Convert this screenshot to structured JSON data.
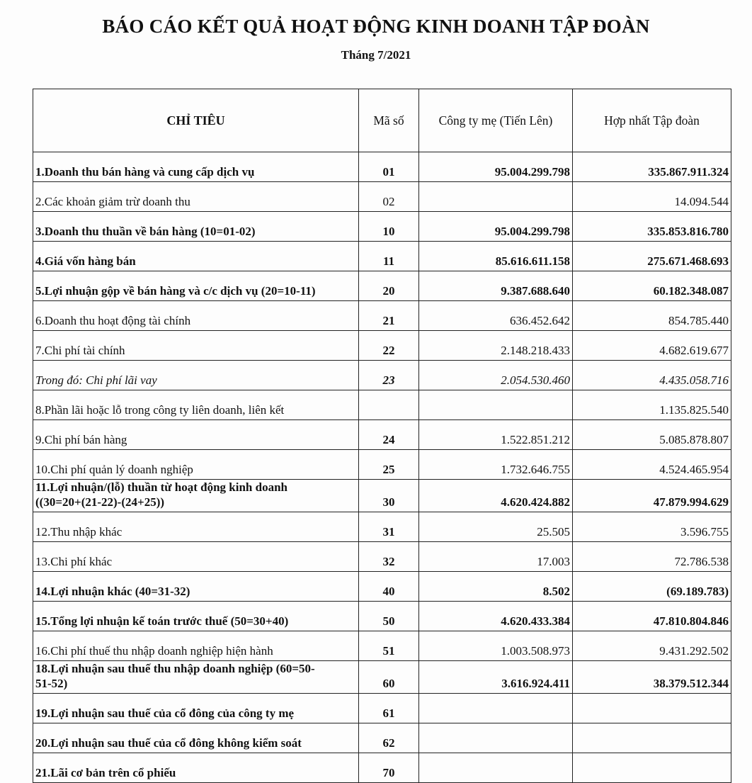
{
  "title": "BÁO CÁO KẾT QUẢ HOẠT ĐỘNG KINH DOANH TẬP ĐOÀN",
  "subtitle": "Tháng 7/2021",
  "table": {
    "headers": [
      "CHỈ TIÊU",
      "Mã số",
      "Công ty mẹ (Tiến Lên)",
      "Hợp nhất Tập đoàn"
    ],
    "rows": [
      {
        "label": "1.Doanh thu bán hàng và cung cấp dịch vụ",
        "code": "01",
        "parent": "95.004.299.798",
        "group": "335.867.911.324",
        "style": "bold"
      },
      {
        "label": "2.Các khoản giảm trừ doanh thu",
        "code": "02",
        "parent": "",
        "group": "14.094.544",
        "style": "normal"
      },
      {
        "label": "3.Doanh thu thuần về bán hàng (10=01-02)",
        "code": "10",
        "parent": "95.004.299.798",
        "group": "335.853.816.780",
        "style": "bold"
      },
      {
        "label": "4.Giá vốn hàng bán",
        "code": "11",
        "parent": "85.616.611.158",
        "group": "275.671.468.693",
        "style": "bold"
      },
      {
        "label": "5.Lợi nhuận gộp về bán hàng và c/c dịch vụ (20=10-11)",
        "code": "20",
        "parent": "9.387.688.640",
        "group": "60.182.348.087",
        "style": "bold"
      },
      {
        "label": "6.Doanh thu hoạt động tài chính",
        "code": "21",
        "parent": "636.452.642",
        "group": "854.785.440",
        "style": "code-bold"
      },
      {
        "label": "7.Chi phí tài chính",
        "code": "22",
        "parent": "2.148.218.433",
        "group": "4.682.619.677",
        "style": "code-bold"
      },
      {
        "label": "Trong đó: Chi phí lãi vay",
        "code": "23",
        "parent": "2.054.530.460",
        "group": "4.435.058.716",
        "style": "italic"
      },
      {
        "label": "8.Phần lãi hoặc lỗ trong công ty liên doanh, liên kết",
        "code": "",
        "parent": "",
        "group": "1.135.825.540",
        "style": "normal"
      },
      {
        "label": "9.Chi phí bán hàng",
        "code": "24",
        "parent": "1.522.851.212",
        "group": "5.085.878.807",
        "style": "code-bold"
      },
      {
        "label": "10.Chi phí quản lý doanh nghiệp",
        "code": "25",
        "parent": "1.732.646.755",
        "group": "4.524.465.954",
        "style": "code-bold"
      },
      {
        "label": "11.Lợi nhuận/(lỗ) thuần từ hoạt động kinh doanh",
        "label2": "((30=20+(21-22)-(24+25))",
        "code": "30",
        "parent": "4.620.424.882",
        "group": "47.879.994.629",
        "style": "bold"
      },
      {
        "label": "12.Thu nhập khác",
        "code": "31",
        "parent": "25.505",
        "group": "3.596.755",
        "style": "code-bold"
      },
      {
        "label": "13.Chi phí khác",
        "code": "32",
        "parent": "17.003",
        "group": "72.786.538",
        "style": "code-bold"
      },
      {
        "label": "14.Lợi nhuận khác (40=31-32)",
        "code": "40",
        "parent": "8.502",
        "group": "(69.189.783)",
        "style": "bold"
      },
      {
        "label": "15.Tổng lợi nhuận kế toán trước thuế (50=30+40)",
        "code": "50",
        "parent": "4.620.433.384",
        "group": "47.810.804.846",
        "style": "bold"
      },
      {
        "label": "16.Chi phí thuế thu nhập doanh nghiệp hiện hành",
        "code": "51",
        "parent": "1.003.508.973",
        "group": "9.431.292.502",
        "style": "code-bold"
      },
      {
        "label": "18.Lợi nhuận sau thuế thu nhập doanh nghiệp (60=50-",
        "label2": "51-52)",
        "code": "60",
        "parent": "3.616.924.411",
        "group": "38.379.512.344",
        "style": "bold"
      },
      {
        "label": "19.Lợi nhuận sau thuế của cổ đông của công ty mẹ",
        "code": "61",
        "parent": "",
        "group": "",
        "style": "bold"
      },
      {
        "label": "20.Lợi nhuận sau thuế của cổ đông không kiểm soát",
        "code": "62",
        "parent": "",
        "group": "",
        "style": "bold"
      },
      {
        "label": "21.Lãi cơ bản trên cổ phiếu",
        "code": "70",
        "parent": "",
        "group": "",
        "style": "bold"
      }
    ]
  }
}
